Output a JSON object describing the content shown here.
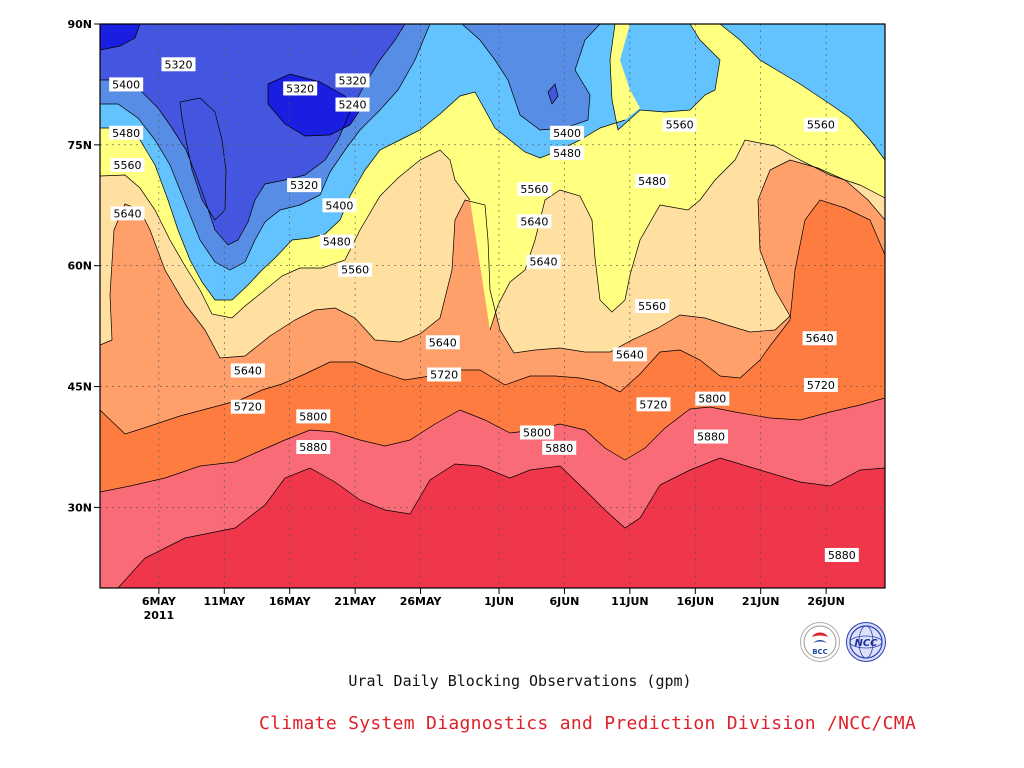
{
  "chart_data": {
    "type": "heatmap",
    "title": "",
    "caption": "Ural Daily Blocking Observations (gpm)",
    "x_ticks": [
      {
        "label": "6MAY",
        "sublabel": "2011",
        "day": 6
      },
      {
        "label": "11MAY",
        "day": 11
      },
      {
        "label": "16MAY",
        "day": 16
      },
      {
        "label": "21MAY",
        "day": 21
      },
      {
        "label": "26MAY",
        "day": 26
      },
      {
        "label": "1JUN",
        "day": 32
      },
      {
        "label": "6JUN",
        "day": 37
      },
      {
        "label": "11JUN",
        "day": 42
      },
      {
        "label": "16JUN",
        "day": 47
      },
      {
        "label": "21JUN",
        "day": 52
      },
      {
        "label": "26JUN",
        "day": 57
      }
    ],
    "x_range_days": [
      1.5,
      61.5
    ],
    "y_ticks": [
      {
        "label": "90N",
        "lat": 90
      },
      {
        "label": "75N",
        "lat": 75
      },
      {
        "label": "60N",
        "lat": 60
      },
      {
        "label": "45N",
        "lat": 45
      },
      {
        "label": "30N",
        "lat": 30
      }
    ],
    "y_range_lat": [
      20,
      90
    ],
    "grid": true,
    "contour_levels": [
      5240,
      5320,
      5400,
      5480,
      5560,
      5640,
      5720,
      5800,
      5880
    ],
    "colors": {
      "5880_plus": "#f0364a",
      "5800_5880": "#f96b77",
      "5720_5800": "#ff7c40",
      "5640_5720": "#ff9f6a",
      "5560_5640": "#ffe0a0",
      "5480_5560": "#ffff80",
      "5400_5480": "#62c3ff",
      "5320_5400": "#588de6",
      "5240_5320": "#4455e0",
      "below_5240": "#1a1ee0"
    },
    "contour_labels": [
      {
        "text": "5320",
        "day": 7.5,
        "lat": 85
      },
      {
        "text": "5320",
        "day": 16.8,
        "lat": 82
      },
      {
        "text": "5320",
        "day": 20.8,
        "lat": 83
      },
      {
        "text": "5240",
        "day": 20.8,
        "lat": 80
      },
      {
        "text": "5320",
        "day": 17.1,
        "lat": 70
      },
      {
        "text": "5400",
        "day": 3.5,
        "lat": 82.5
      },
      {
        "text": "5400",
        "day": 19.8,
        "lat": 67.5
      },
      {
        "text": "5400",
        "day": 37.2,
        "lat": 76.5
      },
      {
        "text": "5480",
        "day": 3.5,
        "lat": 76.5
      },
      {
        "text": "5480",
        "day": 19.6,
        "lat": 63
      },
      {
        "text": "5480",
        "day": 37.2,
        "lat": 74
      },
      {
        "text": "5480",
        "day": 43.7,
        "lat": 70.5
      },
      {
        "text": "5560",
        "day": 3.6,
        "lat": 72.5
      },
      {
        "text": "5560",
        "day": 21.0,
        "lat": 59.5
      },
      {
        "text": "5560",
        "day": 34.7,
        "lat": 69.5
      },
      {
        "text": "5560",
        "day": 45.8,
        "lat": 77.5
      },
      {
        "text": "5560",
        "day": 43.7,
        "lat": 55
      },
      {
        "text": "5560",
        "day": 56.6,
        "lat": 77.5
      },
      {
        "text": "5640",
        "day": 3.6,
        "lat": 66.5
      },
      {
        "text": "5640",
        "day": 12.8,
        "lat": 47
      },
      {
        "text": "5640",
        "day": 27.7,
        "lat": 50.5
      },
      {
        "text": "5640",
        "day": 34.7,
        "lat": 65.5
      },
      {
        "text": "5640",
        "day": 35.4,
        "lat": 60.5
      },
      {
        "text": "5640",
        "day": 42.0,
        "lat": 49
      },
      {
        "text": "5640",
        "day": 56.5,
        "lat": 51
      },
      {
        "text": "5720",
        "day": 12.8,
        "lat": 42.5
      },
      {
        "text": "5720",
        "day": 27.8,
        "lat": 46.5
      },
      {
        "text": "5720",
        "day": 43.8,
        "lat": 42.8
      },
      {
        "text": "5720",
        "day": 56.6,
        "lat": 45.2
      },
      {
        "text": "5800",
        "day": 17.8,
        "lat": 41.3
      },
      {
        "text": "5800",
        "day": 34.9,
        "lat": 39.3
      },
      {
        "text": "5800",
        "day": 48.3,
        "lat": 43.5
      },
      {
        "text": "5880",
        "day": 17.8,
        "lat": 37.5
      },
      {
        "text": "5880",
        "day": 36.6,
        "lat": 37.4
      },
      {
        "text": "5880",
        "day": 48.2,
        "lat": 38.8
      },
      {
        "text": "5880",
        "day": 58.2,
        "lat": 24.1
      }
    ]
  },
  "footer": {
    "credit": "Climate System Diagnostics and Prediction Division /NCC/CMA",
    "logo_left": "BCC",
    "logo_right": "NCC"
  }
}
